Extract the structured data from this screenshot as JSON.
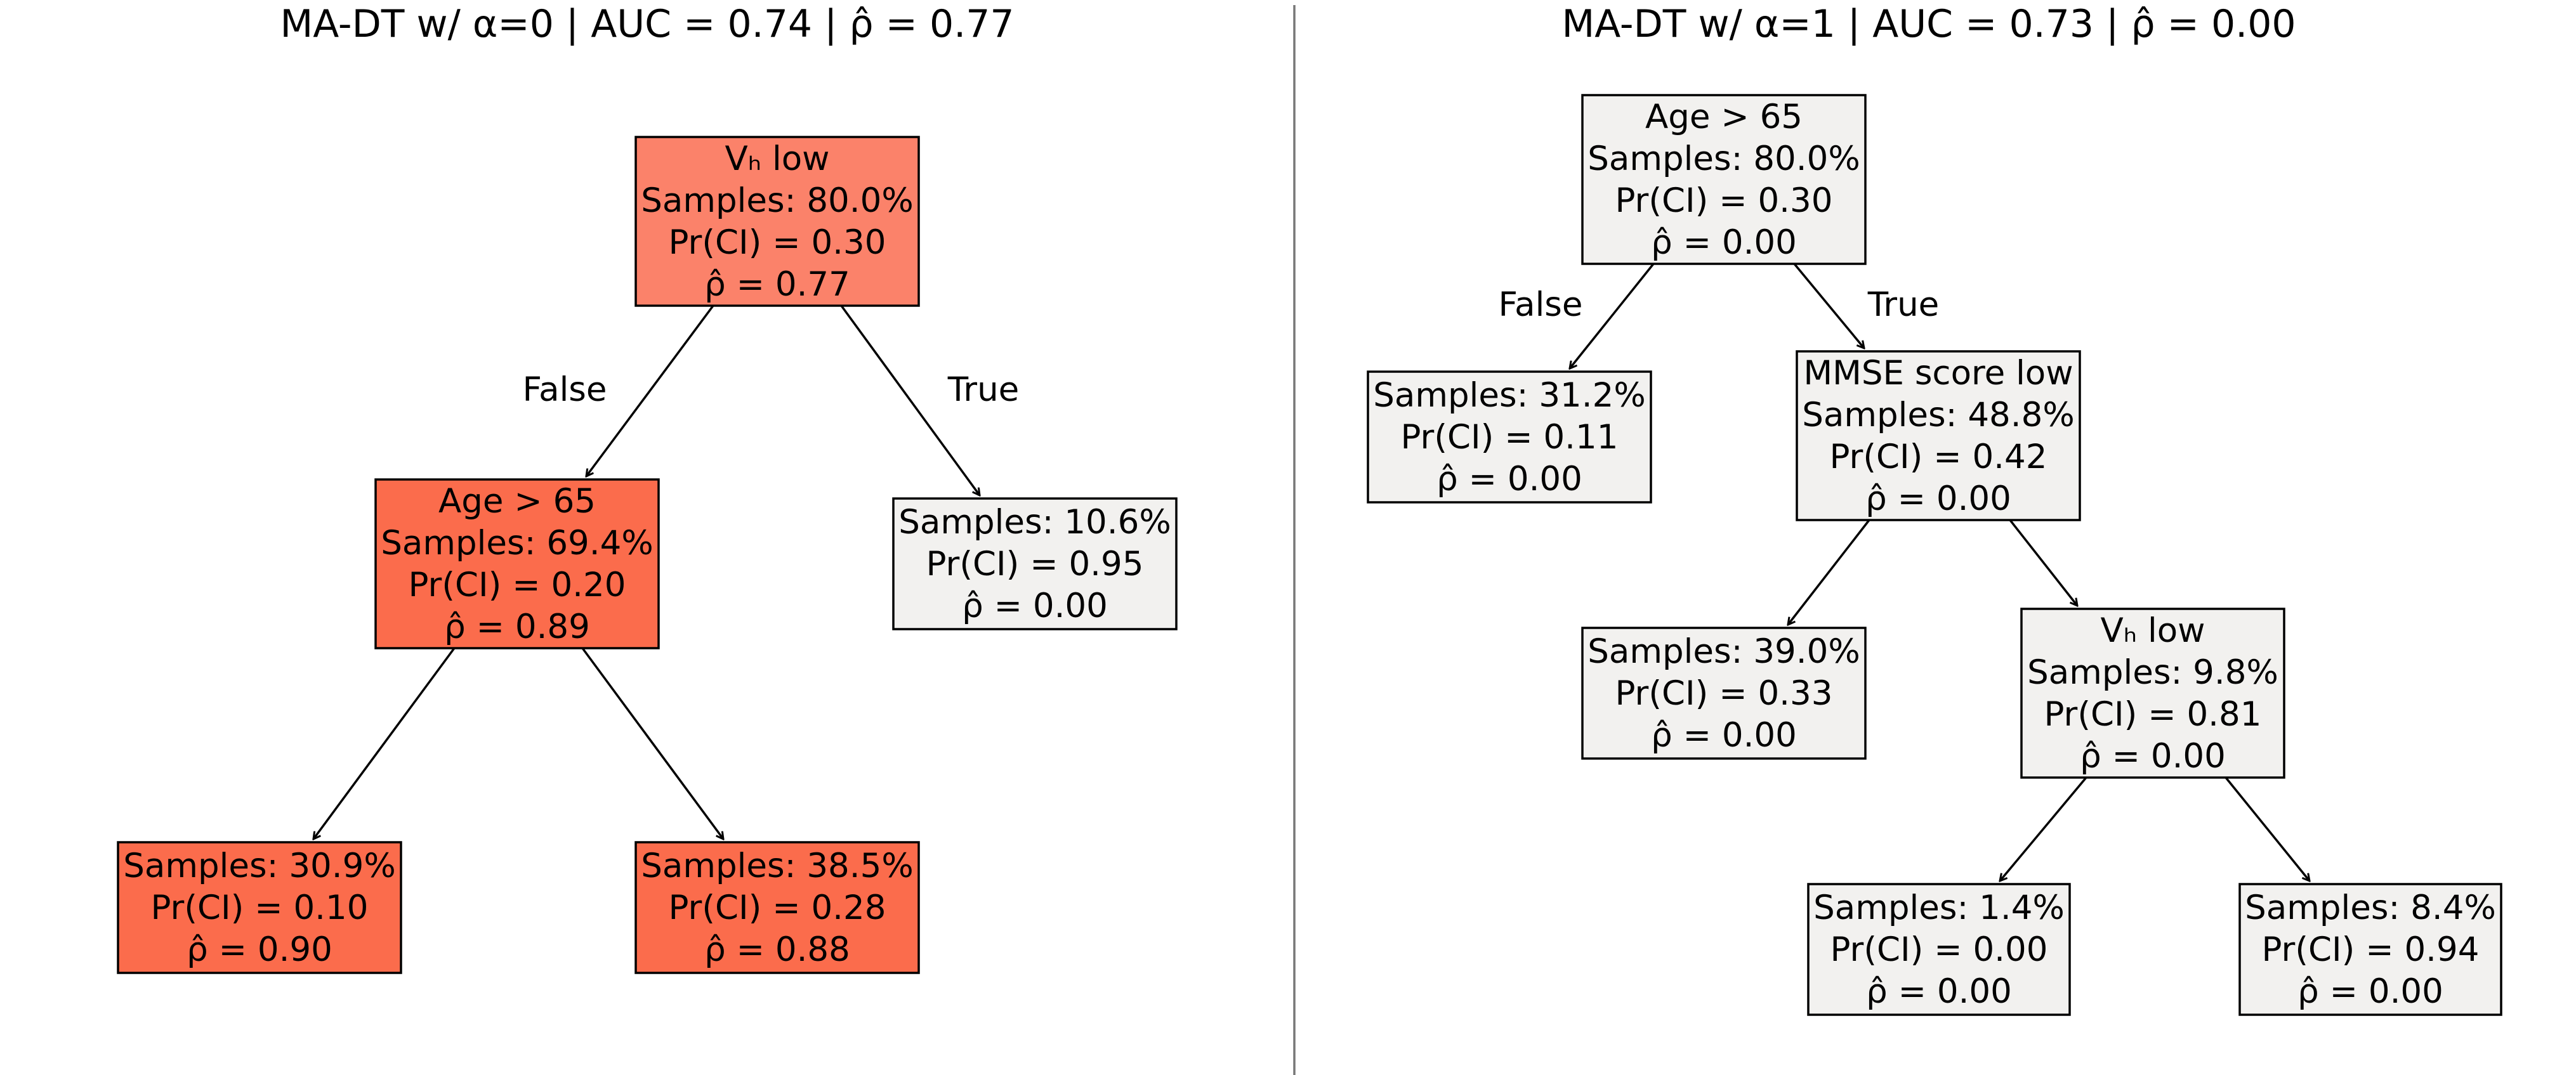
{
  "colors": {
    "high_rho_fill": "#fb826a",
    "mid_rho_fill": "#fb6c4c",
    "zero_rho_fill": "#f2f1ef",
    "line": "#000000",
    "divider": "#777777"
  },
  "trees": [
    {
      "title": "MA-DT w/ α=0 | AUC = 0.74 | ρ̂ = 0.77",
      "nodes": [
        {
          "id": "L0",
          "lines": [
            "Vₕ low",
            "Samples: 80.0%",
            "Pr(CI) = 0.30",
            "ρ̂ = 0.77"
          ],
          "fill": "#fb826a"
        },
        {
          "id": "L1",
          "lines": [
            "Age > 65",
            "Samples: 69.4%",
            "Pr(CI) = 0.20",
            "ρ̂ = 0.89"
          ],
          "fill": "#fb6c4c"
        },
        {
          "id": "L2",
          "lines": [
            "Samples: 10.6%",
            "Pr(CI) = 0.95",
            "ρ̂ = 0.00"
          ],
          "fill": "#f2f1ef"
        },
        {
          "id": "L3",
          "lines": [
            "Samples: 30.9%",
            "Pr(CI) = 0.10",
            "ρ̂ = 0.90"
          ],
          "fill": "#fb6c4c"
        },
        {
          "id": "L4",
          "lines": [
            "Samples: 38.5%",
            "Pr(CI) = 0.28",
            "ρ̂ = 0.88"
          ],
          "fill": "#fb6c4c"
        }
      ],
      "edges": [
        {
          "from": "L0",
          "to": "L1",
          "label": "False"
        },
        {
          "from": "L0",
          "to": "L2",
          "label": "True"
        },
        {
          "from": "L1",
          "to": "L3",
          "label": ""
        },
        {
          "from": "L1",
          "to": "L4",
          "label": ""
        }
      ]
    },
    {
      "title": "MA-DT w/ α=1 | AUC = 0.73 | ρ̂ = 0.00",
      "nodes": [
        {
          "id": "R0",
          "lines": [
            "Age > 65",
            "Samples: 80.0%",
            "Pr(CI) = 0.30",
            "ρ̂ = 0.00"
          ],
          "fill": "#f2f1ef"
        },
        {
          "id": "R1",
          "lines": [
            "Samples: 31.2%",
            "Pr(CI) = 0.11",
            "ρ̂ = 0.00"
          ],
          "fill": "#f2f1ef"
        },
        {
          "id": "R2",
          "lines": [
            "MMSE score low",
            "Samples: 48.8%",
            "Pr(CI) = 0.42",
            "ρ̂ = 0.00"
          ],
          "fill": "#f2f1ef"
        },
        {
          "id": "R3",
          "lines": [
            "Samples: 39.0%",
            "Pr(CI) = 0.33",
            "ρ̂ = 0.00"
          ],
          "fill": "#f2f1ef"
        },
        {
          "id": "R4",
          "lines": [
            "Vₕ low",
            "Samples: 9.8%",
            "Pr(CI) = 0.81",
            "ρ̂ = 0.00"
          ],
          "fill": "#f2f1ef"
        },
        {
          "id": "R5",
          "lines": [
            "Samples: 1.4%",
            "Pr(CI) = 0.00",
            "ρ̂ = 0.00"
          ],
          "fill": "#f2f1ef"
        },
        {
          "id": "R6",
          "lines": [
            "Samples: 8.4%",
            "Pr(CI) = 0.94",
            "ρ̂ = 0.00"
          ],
          "fill": "#f2f1ef"
        }
      ],
      "edges": [
        {
          "from": "R0",
          "to": "R1",
          "label": "False"
        },
        {
          "from": "R0",
          "to": "R2",
          "label": "True"
        },
        {
          "from": "R2",
          "to": "R3",
          "label": ""
        },
        {
          "from": "R2",
          "to": "R4",
          "label": ""
        },
        {
          "from": "R4",
          "to": "R5",
          "label": ""
        },
        {
          "from": "R4",
          "to": "R6",
          "label": ""
        }
      ]
    }
  ]
}
